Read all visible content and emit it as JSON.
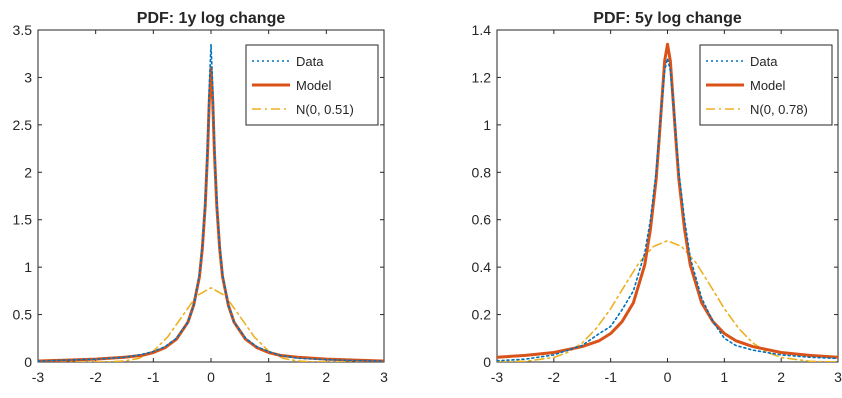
{
  "chart_data": [
    {
      "type": "line",
      "title": "PDF: 1y log change",
      "xlabel": "",
      "ylabel": "",
      "xlim": [
        -3,
        3
      ],
      "ylim": [
        0,
        3.5
      ],
      "xticks": [
        "-3",
        "-2",
        "-1",
        "0",
        "1",
        "2",
        "3"
      ],
      "yticks": [
        "0",
        "0.5",
        "1",
        "1.5",
        "2",
        "2.5",
        "3",
        "3.5"
      ],
      "grid": false,
      "legend_position": "top-right",
      "series": [
        {
          "name": "Data",
          "style": "dotted",
          "color": "#0072BD",
          "x": [
            -3,
            -2.5,
            -2,
            -1.5,
            -1.2,
            -1,
            -0.8,
            -0.6,
            -0.4,
            -0.3,
            -0.2,
            -0.15,
            -0.1,
            -0.06,
            -0.03,
            0,
            0.03,
            0.06,
            0.1,
            0.15,
            0.2,
            0.3,
            0.4,
            0.6,
            0.8,
            1,
            1.2,
            1.5,
            2,
            2.5,
            3
          ],
          "y": [
            0.01,
            0.02,
            0.03,
            0.05,
            0.08,
            0.11,
            0.16,
            0.25,
            0.42,
            0.6,
            0.92,
            1.22,
            1.68,
            2.25,
            2.9,
            3.35,
            2.9,
            2.25,
            1.68,
            1.22,
            0.92,
            0.6,
            0.42,
            0.25,
            0.16,
            0.11,
            0.07,
            0.04,
            0.025,
            0.015,
            0.01
          ]
        },
        {
          "name": "Model",
          "style": "solid",
          "color": "#D95319",
          "x": [
            -3,
            -2.5,
            -2,
            -1.5,
            -1.2,
            -1,
            -0.8,
            -0.6,
            -0.4,
            -0.3,
            -0.2,
            -0.15,
            -0.1,
            -0.06,
            -0.03,
            0,
            0.03,
            0.06,
            0.1,
            0.15,
            0.2,
            0.3,
            0.4,
            0.6,
            0.8,
            1,
            1.2,
            1.5,
            2,
            2.5,
            3
          ],
          "y": [
            0.01,
            0.02,
            0.03,
            0.05,
            0.07,
            0.1,
            0.15,
            0.24,
            0.42,
            0.6,
            0.9,
            1.2,
            1.65,
            2.2,
            2.75,
            3.1,
            2.75,
            2.2,
            1.65,
            1.2,
            0.9,
            0.6,
            0.42,
            0.24,
            0.15,
            0.1,
            0.07,
            0.05,
            0.03,
            0.02,
            0.01
          ]
        },
        {
          "name": "N(0, 0.51)",
          "style": "dashdot",
          "color": "#EDB120",
          "x": [
            -3,
            -2.5,
            -2,
            -1.75,
            -1.5,
            -1.25,
            -1,
            -0.75,
            -0.5,
            -0.25,
            0,
            0.25,
            0.5,
            0.75,
            1,
            1.25,
            1.5,
            1.75,
            2,
            2.5,
            3
          ],
          "y": [
            0,
            0,
            0.0005,
            0.0022,
            0.0104,
            0.0388,
            0.1135,
            0.2657,
            0.4809,
            0.6969,
            0.7822,
            0.6969,
            0.4809,
            0.2657,
            0.1135,
            0.0388,
            0.0104,
            0.0022,
            0.0005,
            0,
            0
          ]
        }
      ]
    },
    {
      "type": "line",
      "title": "PDF: 5y log change",
      "xlabel": "",
      "ylabel": "",
      "xlim": [
        -3,
        3
      ],
      "ylim": [
        0,
        1.4
      ],
      "xticks": [
        "-3",
        "-2",
        "-1",
        "0",
        "1",
        "2",
        "3"
      ],
      "yticks": [
        "0",
        "0.2",
        "0.4",
        "0.6",
        "0.8",
        "1",
        "1.2",
        "1.4"
      ],
      "grid": false,
      "legend_position": "top-right",
      "series": [
        {
          "name": "Data",
          "style": "dotted",
          "color": "#0072BD",
          "x": [
            -3,
            -2.5,
            -2,
            -1.5,
            -1.2,
            -1,
            -0.8,
            -0.6,
            -0.4,
            -0.3,
            -0.2,
            -0.15,
            -0.1,
            -0.05,
            0,
            0.05,
            0.1,
            0.15,
            0.2,
            0.3,
            0.4,
            0.6,
            0.8,
            1,
            1.2,
            1.5,
            2,
            2.5,
            3
          ],
          "y": [
            0.005,
            0.012,
            0.03,
            0.07,
            0.12,
            0.15,
            0.22,
            0.3,
            0.46,
            0.6,
            0.8,
            0.95,
            1.1,
            1.23,
            1.28,
            1.23,
            1.1,
            0.95,
            0.8,
            0.6,
            0.44,
            0.27,
            0.17,
            0.1,
            0.07,
            0.05,
            0.03,
            0.02,
            0.015
          ]
        },
        {
          "name": "Model",
          "style": "solid",
          "color": "#D95319",
          "x": [
            -3,
            -2.5,
            -2,
            -1.5,
            -1.2,
            -1,
            -0.8,
            -0.6,
            -0.4,
            -0.3,
            -0.2,
            -0.15,
            -0.1,
            -0.05,
            0,
            0.05,
            0.1,
            0.15,
            0.2,
            0.3,
            0.4,
            0.6,
            0.8,
            1,
            1.2,
            1.5,
            2,
            2.5,
            3
          ],
          "y": [
            0.02,
            0.028,
            0.04,
            0.065,
            0.09,
            0.12,
            0.17,
            0.25,
            0.41,
            0.56,
            0.77,
            0.93,
            1.1,
            1.27,
            1.34,
            1.27,
            1.1,
            0.93,
            0.77,
            0.56,
            0.41,
            0.25,
            0.17,
            0.12,
            0.09,
            0.065,
            0.04,
            0.028,
            0.02
          ]
        },
        {
          "name": "N(0, 0.78)",
          "style": "dashdot",
          "color": "#EDB120",
          "x": [
            -3,
            -2.5,
            -2,
            -1.75,
            -1.5,
            -1.25,
            -1,
            -0.75,
            -0.5,
            -0.25,
            0,
            0.25,
            0.5,
            0.75,
            1,
            1.25,
            1.5,
            1.75,
            2,
            2.5,
            3
          ],
          "y": [
            0.0003,
            0.0031,
            0.0192,
            0.0412,
            0.0806,
            0.1425,
            0.2251,
            0.3236,
            0.4188,
            0.4866,
            0.5115,
            0.4866,
            0.4188,
            0.3236,
            0.2251,
            0.1425,
            0.0806,
            0.0412,
            0.0192,
            0.0031,
            0.0003
          ]
        }
      ]
    }
  ]
}
